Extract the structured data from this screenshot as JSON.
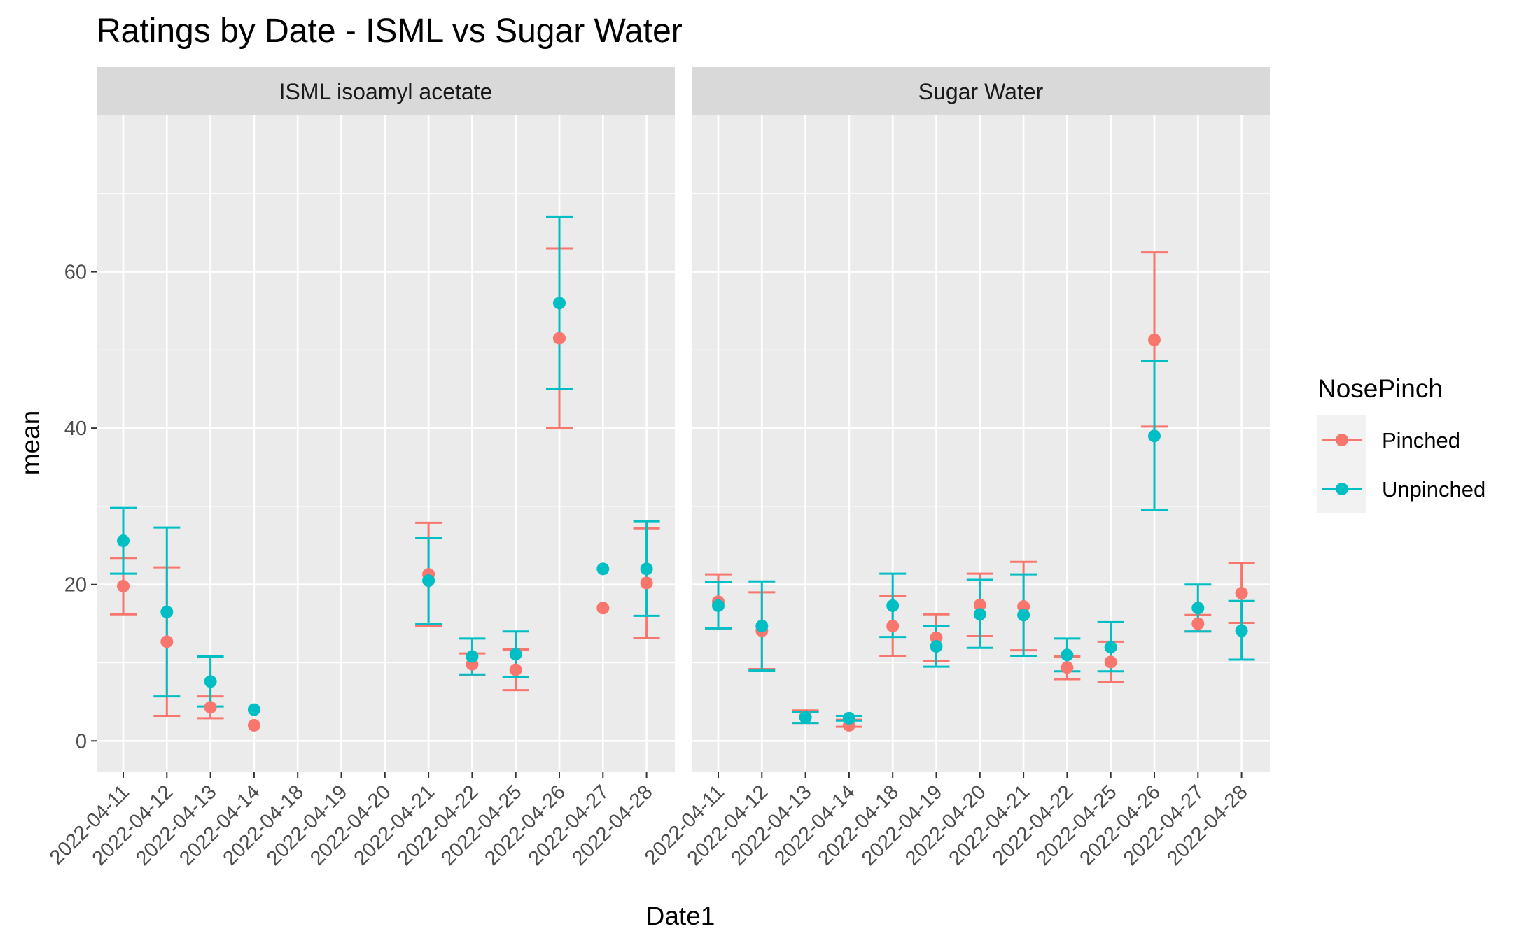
{
  "chart_data": {
    "type": "scatter",
    "title": "Ratings by Date - ISML vs Sugar Water",
    "xlabel": "Date1",
    "ylabel": "mean",
    "ylim": [
      -4,
      80
    ],
    "yticks": [
      0,
      20,
      40,
      60
    ],
    "grid": true,
    "legend": {
      "title": "NosePinch",
      "placement": "right",
      "entries": [
        {
          "label": "Pinched",
          "color": "#F8766D"
        },
        {
          "label": "Unpinched",
          "color": "#00BFC4"
        }
      ]
    },
    "categories": [
      "2022-04-11",
      "2022-04-12",
      "2022-04-13",
      "2022-04-14",
      "2022-04-18",
      "2022-04-19",
      "2022-04-20",
      "2022-04-21",
      "2022-04-22",
      "2022-04-25",
      "2022-04-26",
      "2022-04-27",
      "2022-04-28"
    ],
    "panels": [
      {
        "label": "ISML isoamyl acetate",
        "series": [
          {
            "name": "Pinched",
            "color": "#F8766D",
            "points": [
              {
                "x": "2022-04-11",
                "mean": 19.8,
                "lo": 16.2,
                "hi": 23.4
              },
              {
                "x": "2022-04-12",
                "mean": 12.7,
                "lo": 3.2,
                "hi": 22.2
              },
              {
                "x": "2022-04-13",
                "mean": 4.3,
                "lo": 2.9,
                "hi": 5.7
              },
              {
                "x": "2022-04-14",
                "mean": 2.0
              },
              {
                "x": "2022-04-21",
                "mean": 21.3,
                "lo": 14.7,
                "hi": 27.9
              },
              {
                "x": "2022-04-22",
                "mean": 9.8,
                "lo": 8.4,
                "hi": 11.2
              },
              {
                "x": "2022-04-25",
                "mean": 9.1,
                "lo": 6.5,
                "hi": 11.7
              },
              {
                "x": "2022-04-26",
                "mean": 51.5,
                "lo": 40.0,
                "hi": 63.0
              },
              {
                "x": "2022-04-27",
                "mean": 17.0
              },
              {
                "x": "2022-04-28",
                "mean": 20.2,
                "lo": 13.2,
                "hi": 27.2
              }
            ]
          },
          {
            "name": "Unpinched",
            "color": "#00BFC4",
            "points": [
              {
                "x": "2022-04-11",
                "mean": 25.6,
                "lo": 21.4,
                "hi": 29.8
              },
              {
                "x": "2022-04-12",
                "mean": 16.5,
                "lo": 5.7,
                "hi": 27.3
              },
              {
                "x": "2022-04-13",
                "mean": 7.6,
                "lo": 4.4,
                "hi": 10.8
              },
              {
                "x": "2022-04-14",
                "mean": 4.0
              },
              {
                "x": "2022-04-21",
                "mean": 20.5,
                "lo": 15.0,
                "hi": 26.0
              },
              {
                "x": "2022-04-22",
                "mean": 10.8,
                "lo": 8.5,
                "hi": 13.1
              },
              {
                "x": "2022-04-25",
                "mean": 11.1,
                "lo": 8.2,
                "hi": 14.0
              },
              {
                "x": "2022-04-26",
                "mean": 56.0,
                "lo": 45.0,
                "hi": 67.0
              },
              {
                "x": "2022-04-27",
                "mean": 22.0
              },
              {
                "x": "2022-04-28",
                "mean": 22.0,
                "lo": 16.0,
                "hi": 28.1
              }
            ]
          }
        ]
      },
      {
        "label": "Sugar Water",
        "series": [
          {
            "name": "Pinched",
            "color": "#F8766D",
            "points": [
              {
                "x": "2022-04-11",
                "mean": 17.8,
                "lo": 14.4,
                "hi": 21.3
              },
              {
                "x": "2022-04-12",
                "mean": 14.1,
                "lo": 9.2,
                "hi": 19.0
              },
              {
                "x": "2022-04-13",
                "mean": 3.1,
                "lo": 2.3,
                "hi": 3.9
              },
              {
                "x": "2022-04-14",
                "mean": 2.0,
                "lo": 1.8,
                "hi": 2.7
              },
              {
                "x": "2022-04-18",
                "mean": 14.7,
                "lo": 10.9,
                "hi": 18.5
              },
              {
                "x": "2022-04-19",
                "mean": 13.2,
                "lo": 10.2,
                "hi": 16.2
              },
              {
                "x": "2022-04-20",
                "mean": 17.4,
                "lo": 13.4,
                "hi": 21.4
              },
              {
                "x": "2022-04-21",
                "mean": 17.2,
                "lo": 11.6,
                "hi": 22.9
              },
              {
                "x": "2022-04-22",
                "mean": 9.4,
                "lo": 7.9,
                "hi": 10.8
              },
              {
                "x": "2022-04-25",
                "mean": 10.1,
                "lo": 7.5,
                "hi": 12.7
              },
              {
                "x": "2022-04-26",
                "mean": 51.3,
                "lo": 40.2,
                "hi": 62.5
              },
              {
                "x": "2022-04-27",
                "mean": 15.0,
                "lo": 14.0,
                "hi": 16.1
              },
              {
                "x": "2022-04-28",
                "mean": 18.9,
                "lo": 15.1,
                "hi": 22.7
              }
            ]
          },
          {
            "name": "Unpinched",
            "color": "#00BFC4",
            "points": [
              {
                "x": "2022-04-11",
                "mean": 17.3,
                "lo": 14.4,
                "hi": 20.3
              },
              {
                "x": "2022-04-12",
                "mean": 14.7,
                "lo": 9.0,
                "hi": 20.4
              },
              {
                "x": "2022-04-13",
                "mean": 3.0,
                "lo": 2.3,
                "hi": 3.7
              },
              {
                "x": "2022-04-14",
                "mean": 2.9,
                "lo": 2.6,
                "hi": 3.2
              },
              {
                "x": "2022-04-18",
                "mean": 17.3,
                "lo": 13.3,
                "hi": 21.4
              },
              {
                "x": "2022-04-19",
                "mean": 12.1,
                "lo": 9.5,
                "hi": 14.7
              },
              {
                "x": "2022-04-20",
                "mean": 16.2,
                "lo": 11.9,
                "hi": 20.6
              },
              {
                "x": "2022-04-21",
                "mean": 16.1,
                "lo": 10.9,
                "hi": 21.3
              },
              {
                "x": "2022-04-22",
                "mean": 11.0,
                "lo": 8.9,
                "hi": 13.1
              },
              {
                "x": "2022-04-25",
                "mean": 12.0,
                "lo": 8.9,
                "hi": 15.2
              },
              {
                "x": "2022-04-26",
                "mean": 39.0,
                "lo": 29.5,
                "hi": 48.6
              },
              {
                "x": "2022-04-27",
                "mean": 17.0,
                "lo": 14.0,
                "hi": 20.0
              },
              {
                "x": "2022-04-28",
                "mean": 14.1,
                "lo": 10.4,
                "hi": 17.9
              }
            ]
          }
        ]
      }
    ]
  }
}
